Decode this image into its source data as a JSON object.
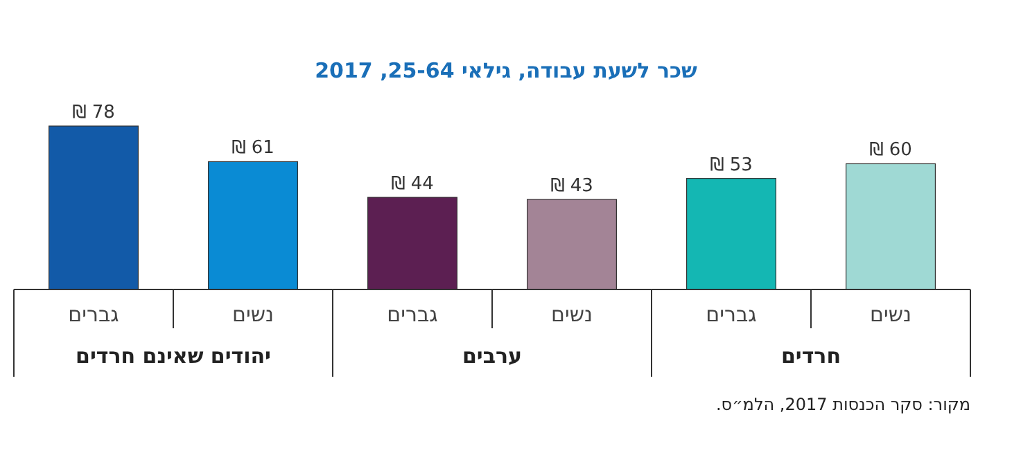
{
  "chart_data": {
    "type": "bar",
    "title": "שכר לשעת עבודה, גילאי 25-64, 2017",
    "categories": [
      "גברים",
      "נשים",
      "גברים",
      "נשים",
      "גברים",
      "נשים"
    ],
    "values": [
      78,
      61,
      44,
      43,
      53,
      60
    ],
    "colors": [
      "#125aa8",
      "#0a8bd4",
      "#5c1f52",
      "#a38496",
      "#14b7b3",
      "#9fd9d4"
    ],
    "value_labels": [
      "78 ₪",
      "61 ₪",
      "44 ₪",
      "43 ₪",
      "53 ₪",
      "60 ₪"
    ],
    "annotations": [
      "יהודים שאינם חרדים",
      "ערבים",
      "חרדים",
      "מקור: סקר הכנסות 2017, הלמ״ס."
    ],
    "data_labels": false
  }
}
